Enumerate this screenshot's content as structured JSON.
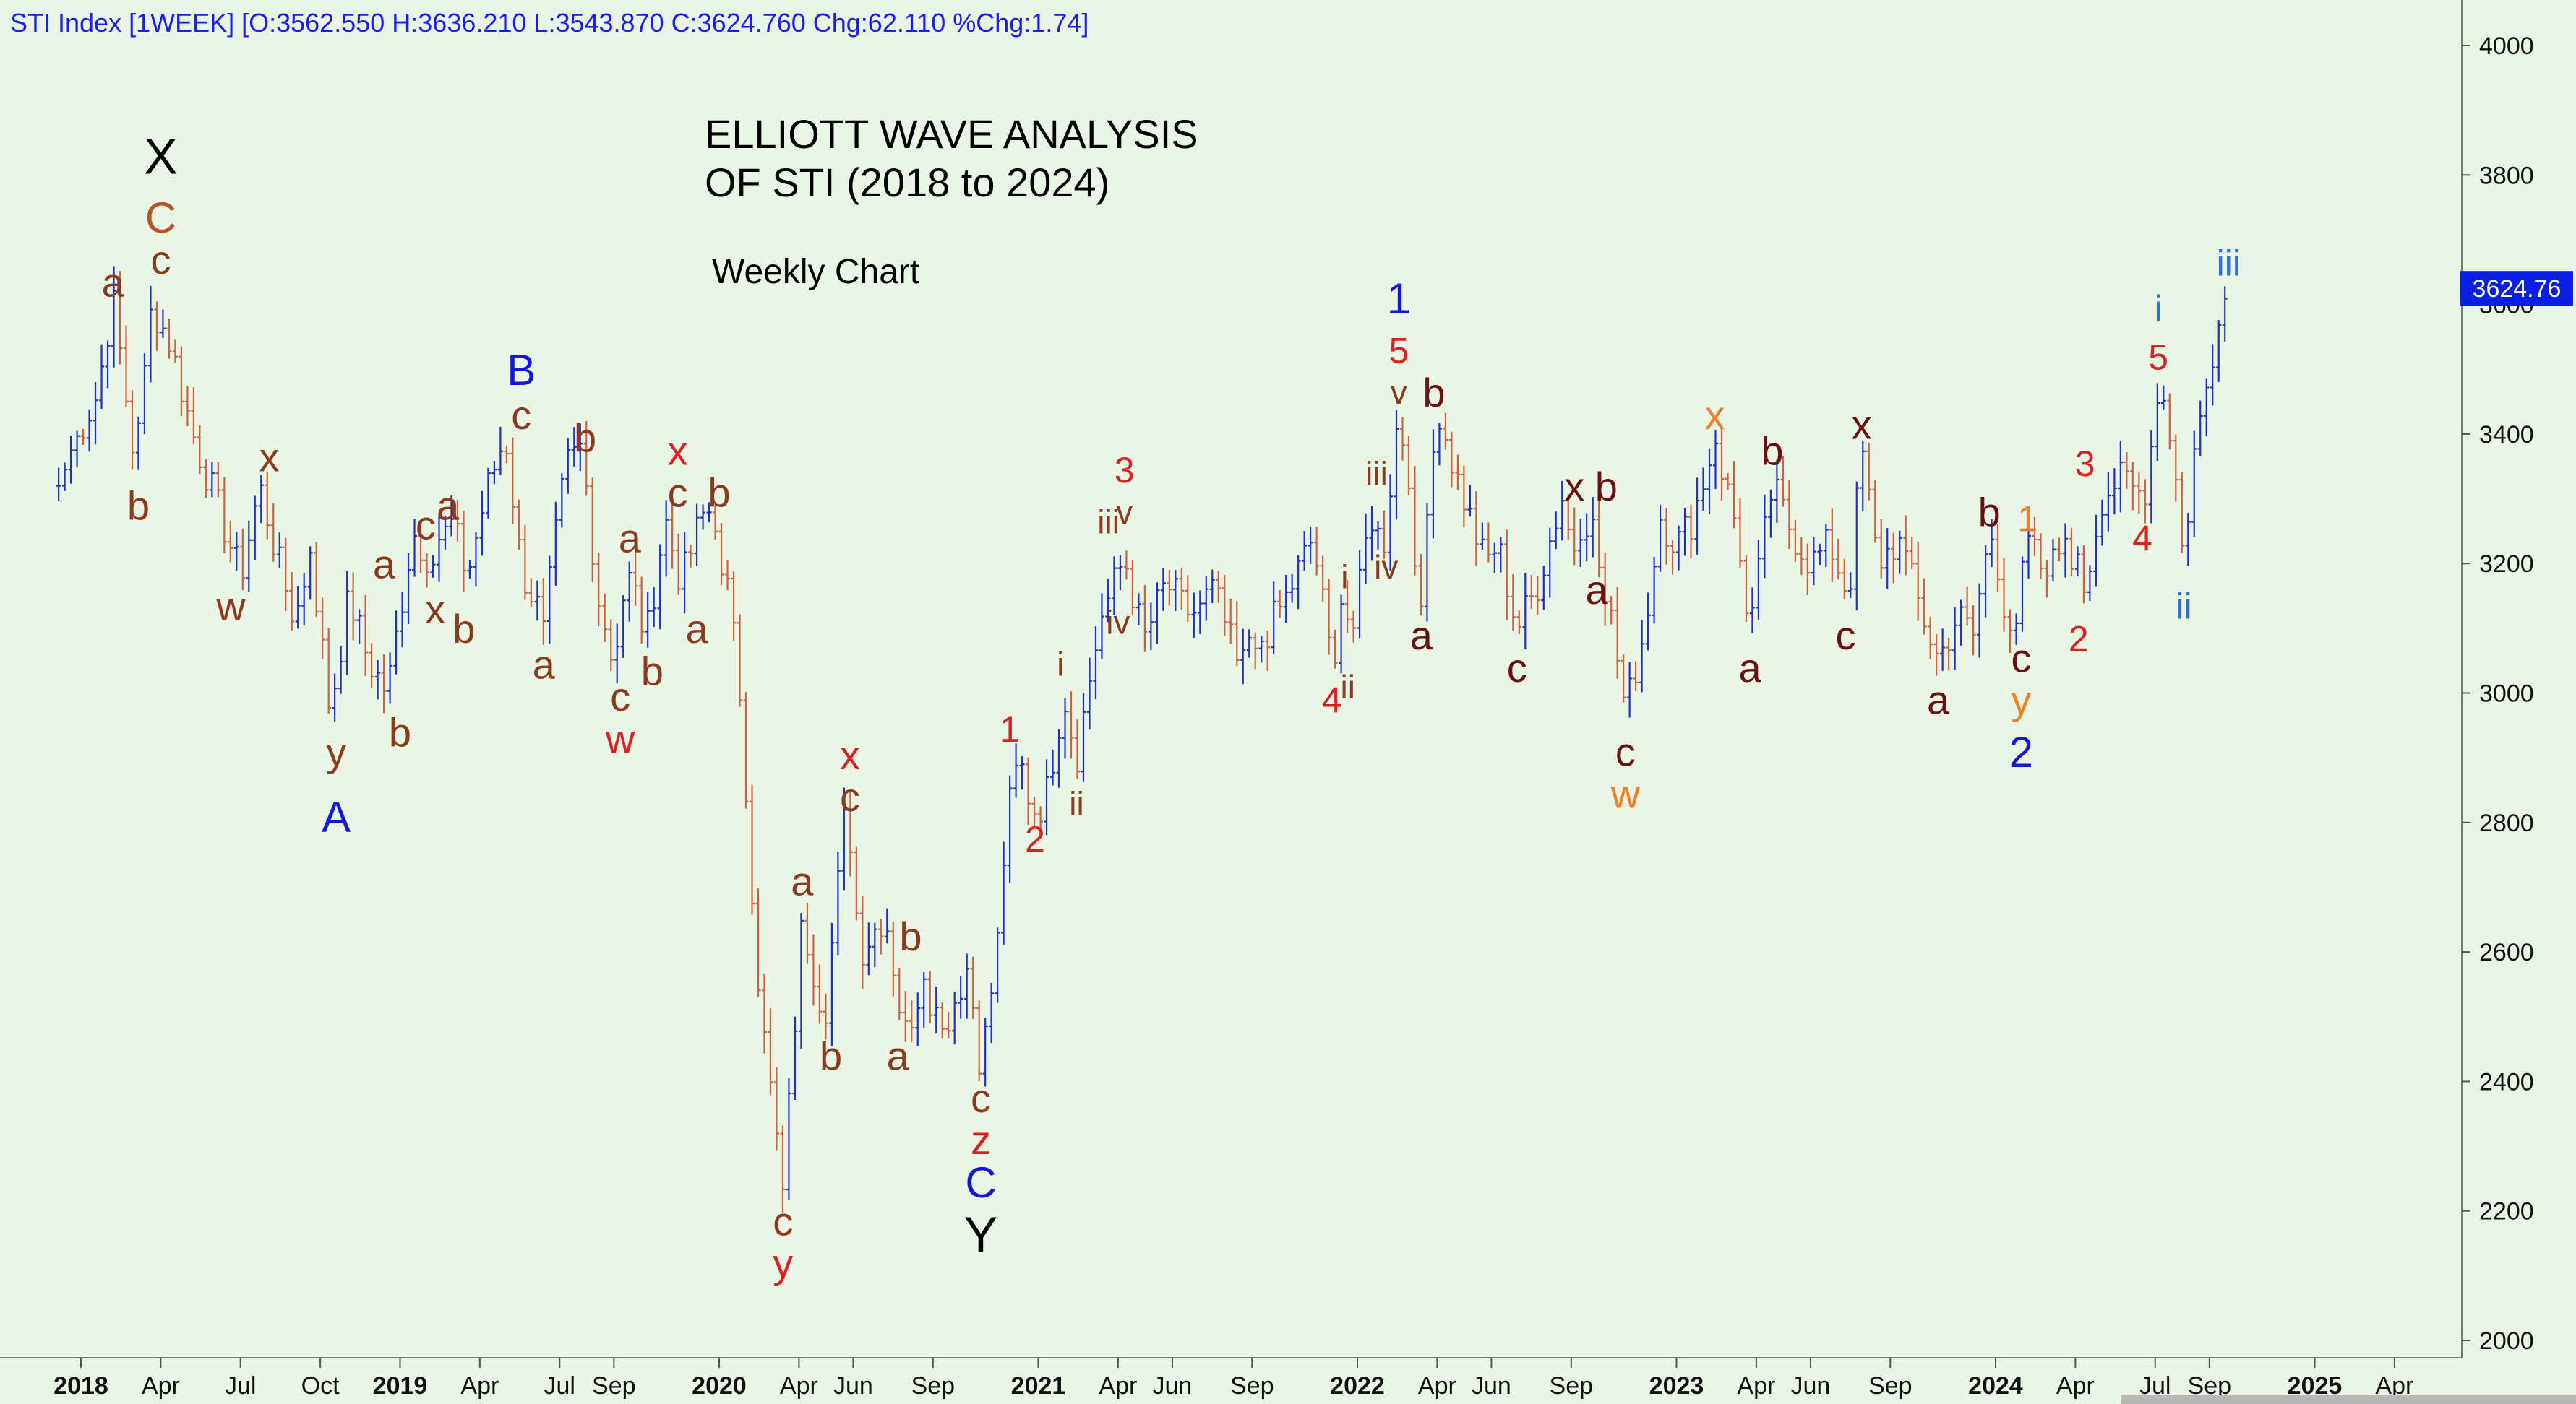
{
  "header": {
    "text": "STI Index [1WEEK] [O:3562.550 H:3636.210 L:3543.870 C:3624.760 Chg:62.110 %Chg:1.74]"
  },
  "title": {
    "line1": "ELLIOTT WAVE ANALYSIS",
    "line2": "OF STI (2018 to 2024)",
    "subtitle": "Weekly Chart"
  },
  "last_price_label": "3624.76",
  "colors": {
    "background": "#e9f5e5",
    "up_bar": "#1f2fd0",
    "down_bar": "#d2603e",
    "price_tag": "#0a1ee6",
    "header_text": "#1a1aff"
  },
  "chart_data": {
    "type": "ohlc-weekly",
    "ylim": [
      2000,
      4050
    ],
    "yticks": [
      2000,
      2200,
      2400,
      2600,
      2800,
      3000,
      3200,
      3400,
      3600,
      3800,
      4000
    ],
    "x_range": [
      2017.9,
      2025.6
    ],
    "xticks": [
      {
        "t": 2018.0,
        "label": "2018",
        "bold": true
      },
      {
        "t": 2018.25,
        "label": "Apr",
        "bold": false
      },
      {
        "t": 2018.5,
        "label": "Jul",
        "bold": false
      },
      {
        "t": 2018.75,
        "label": "Oct",
        "bold": false
      },
      {
        "t": 2019.0,
        "label": "2019",
        "bold": true
      },
      {
        "t": 2019.25,
        "label": "Apr",
        "bold": false
      },
      {
        "t": 2019.5,
        "label": "Jul",
        "bold": false
      },
      {
        "t": 2019.67,
        "label": "Sep",
        "bold": false
      },
      {
        "t": 2020.0,
        "label": "2020",
        "bold": true
      },
      {
        "t": 2020.25,
        "label": "Apr",
        "bold": false
      },
      {
        "t": 2020.42,
        "label": "Jun",
        "bold": false
      },
      {
        "t": 2020.67,
        "label": "Sep",
        "bold": false
      },
      {
        "t": 2021.0,
        "label": "2021",
        "bold": true
      },
      {
        "t": 2021.25,
        "label": "Apr",
        "bold": false
      },
      {
        "t": 2021.42,
        "label": "Jun",
        "bold": false
      },
      {
        "t": 2021.67,
        "label": "Sep",
        "bold": false
      },
      {
        "t": 2022.0,
        "label": "2022",
        "bold": true
      },
      {
        "t": 2022.25,
        "label": "Apr",
        "bold": false
      },
      {
        "t": 2022.42,
        "label": "Jun",
        "bold": false
      },
      {
        "t": 2022.67,
        "label": "Sep",
        "bold": false
      },
      {
        "t": 2023.0,
        "label": "2023",
        "bold": true
      },
      {
        "t": 2023.25,
        "label": "Apr",
        "bold": false
      },
      {
        "t": 2023.42,
        "label": "Jun",
        "bold": false
      },
      {
        "t": 2023.67,
        "label": "Sep",
        "bold": false
      },
      {
        "t": 2024.0,
        "label": "2024",
        "bold": true
      },
      {
        "t": 2024.25,
        "label": "Apr",
        "bold": false
      },
      {
        "t": 2024.5,
        "label": "Jul",
        "bold": false
      },
      {
        "t": 2024.67,
        "label": "Sep",
        "bold": false
      },
      {
        "t": 2025.0,
        "label": "2025",
        "bold": true
      },
      {
        "t": 2025.25,
        "label": "Apr",
        "bold": false
      }
    ],
    "path": [
      [
        2017.93,
        3320
      ],
      [
        2017.99,
        3400
      ],
      [
        2018.05,
        3460
      ],
      [
        2018.1,
        3610
      ],
      [
        2018.17,
        3350
      ],
      [
        2018.22,
        3600
      ],
      [
        2018.28,
        3540
      ],
      [
        2018.35,
        3400
      ],
      [
        2018.42,
        3300
      ],
      [
        2018.5,
        3180
      ],
      [
        2018.56,
        3320
      ],
      [
        2018.62,
        3200
      ],
      [
        2018.67,
        3110
      ],
      [
        2018.72,
        3220
      ],
      [
        2018.78,
        2970
      ],
      [
        2018.84,
        3150
      ],
      [
        2018.9,
        3050
      ],
      [
        2018.96,
        3000
      ],
      [
        2019.04,
        3250
      ],
      [
        2019.1,
        3200
      ],
      [
        2019.16,
        3270
      ],
      [
        2019.21,
        3180
      ],
      [
        2019.27,
        3310
      ],
      [
        2019.33,
        3400
      ],
      [
        2019.38,
        3190
      ],
      [
        2019.45,
        3110
      ],
      [
        2019.52,
        3350
      ],
      [
        2019.57,
        3380
      ],
      [
        2019.62,
        3150
      ],
      [
        2019.67,
        3050
      ],
      [
        2019.72,
        3190
      ],
      [
        2019.77,
        3080
      ],
      [
        2019.83,
        3270
      ],
      [
        2019.88,
        3170
      ],
      [
        2019.95,
        3280
      ],
      [
        2019.98,
        3270
      ],
      [
        2020.03,
        3150
      ],
      [
        2020.07,
        2980
      ],
      [
        2020.12,
        2550
      ],
      [
        2020.2,
        2230
      ],
      [
        2020.26,
        2650
      ],
      [
        2020.33,
        2500
      ],
      [
        2020.4,
        2840
      ],
      [
        2020.44,
        2600
      ],
      [
        2020.52,
        2660
      ],
      [
        2020.58,
        2470
      ],
      [
        2020.64,
        2560
      ],
      [
        2020.7,
        2480
      ],
      [
        2020.78,
        2580
      ],
      [
        2020.82,
        2420
      ],
      [
        2020.87,
        2600
      ],
      [
        2020.9,
        2800
      ],
      [
        2020.94,
        2900
      ],
      [
        2020.98,
        2820
      ],
      [
        2021.02,
        2830
      ],
      [
        2021.08,
        3000
      ],
      [
        2021.12,
        2900
      ],
      [
        2021.17,
        3050
      ],
      [
        2021.2,
        3120
      ],
      [
        2021.27,
        3210
      ],
      [
        2021.33,
        3080
      ],
      [
        2021.4,
        3170
      ],
      [
        2021.47,
        3120
      ],
      [
        2021.55,
        3160
      ],
      [
        2021.62,
        3050
      ],
      [
        2021.7,
        3080
      ],
      [
        2021.78,
        3150
      ],
      [
        2021.86,
        3240
      ],
      [
        2021.9,
        3110
      ],
      [
        2021.92,
        3040
      ],
      [
        2021.95,
        3140
      ],
      [
        2021.99,
        3100
      ],
      [
        2022.04,
        3280
      ],
      [
        2022.08,
        3220
      ],
      [
        2022.13,
        3440
      ],
      [
        2022.16,
        3320
      ],
      [
        2022.2,
        3130
      ],
      [
        2022.25,
        3450
      ],
      [
        2022.3,
        3350
      ],
      [
        2022.36,
        3260
      ],
      [
        2022.4,
        3200
      ],
      [
        2022.44,
        3230
      ],
      [
        2022.5,
        3100
      ],
      [
        2022.56,
        3160
      ],
      [
        2022.64,
        3300
      ],
      [
        2022.68,
        3220
      ],
      [
        2022.74,
        3270
      ],
      [
        2022.8,
        3100
      ],
      [
        2022.84,
        2970
      ],
      [
        2022.9,
        3100
      ],
      [
        2022.95,
        3270
      ],
      [
        2023.0,
        3230
      ],
      [
        2023.05,
        3270
      ],
      [
        2023.12,
        3390
      ],
      [
        2023.18,
        3270
      ],
      [
        2023.23,
        3100
      ],
      [
        2023.3,
        3320
      ],
      [
        2023.36,
        3250
      ],
      [
        2023.42,
        3200
      ],
      [
        2023.48,
        3230
      ],
      [
        2023.54,
        3150
      ],
      [
        2023.58,
        3380
      ],
      [
        2023.63,
        3200
      ],
      [
        2023.7,
        3240
      ],
      [
        2023.75,
        3150
      ],
      [
        2023.82,
        3050
      ],
      [
        2023.88,
        3120
      ],
      [
        2023.93,
        3090
      ],
      [
        2023.98,
        3250
      ],
      [
        2024.02,
        3150
      ],
      [
        2024.06,
        3100
      ],
      [
        2024.1,
        3230
      ],
      [
        2024.16,
        3180
      ],
      [
        2024.22,
        3240
      ],
      [
        2024.28,
        3160
      ],
      [
        2024.33,
        3300
      ],
      [
        2024.38,
        3330
      ],
      [
        2024.43,
        3320
      ],
      [
        2024.47,
        3290
      ],
      [
        2024.51,
        3490
      ],
      [
        2024.55,
        3400
      ],
      [
        2024.59,
        3210
      ],
      [
        2024.62,
        3370
      ],
      [
        2024.66,
        3470
      ],
      [
        2024.7,
        3570
      ],
      [
        2024.73,
        3625
      ]
    ],
    "annotations": [
      {
        "text": "X",
        "x": 2018.25,
        "y": 3830,
        "color": "#000000",
        "size": 70
      },
      {
        "text": "C",
        "x": 2018.25,
        "y": 3735,
        "color": "#b5532e",
        "size": 60
      },
      {
        "text": "c",
        "x": 2018.25,
        "y": 3670,
        "color": "#8b3a1e",
        "size": 56
      },
      {
        "text": "a",
        "x": 2018.1,
        "y": 3635,
        "color": "#8b3a1e",
        "size": 56
      },
      {
        "text": "b",
        "x": 2018.18,
        "y": 3290,
        "color": "#8b3a1e",
        "size": 56
      },
      {
        "text": "x",
        "x": 2018.59,
        "y": 3365,
        "color": "#8b3a1e",
        "size": 56
      },
      {
        "text": "w",
        "x": 2018.47,
        "y": 3135,
        "color": "#8b3a1e",
        "size": 56
      },
      {
        "text": "a",
        "x": 2018.95,
        "y": 3200,
        "color": "#8b3a1e",
        "size": 56
      },
      {
        "text": "y",
        "x": 2018.8,
        "y": 2910,
        "color": "#8b3a1e",
        "size": 56
      },
      {
        "text": "b",
        "x": 2019.0,
        "y": 2940,
        "color": "#8b3a1e",
        "size": 56
      },
      {
        "text": "A",
        "x": 2018.8,
        "y": 2810,
        "color": "#1515e0",
        "size": 60
      },
      {
        "text": "c",
        "x": 2019.08,
        "y": 3260,
        "color": "#8b3a1e",
        "size": 56
      },
      {
        "text": "a",
        "x": 2019.15,
        "y": 3290,
        "color": "#8b3a1e",
        "size": 56
      },
      {
        "text": "x",
        "x": 2019.11,
        "y": 3130,
        "color": "#8b3a1e",
        "size": 56
      },
      {
        "text": "b",
        "x": 2019.2,
        "y": 3100,
        "color": "#8b3a1e",
        "size": 56
      },
      {
        "text": "B",
        "x": 2019.38,
        "y": 3500,
        "color": "#1515e0",
        "size": 60
      },
      {
        "text": "c",
        "x": 2019.38,
        "y": 3430,
        "color": "#8b3a1e",
        "size": 56
      },
      {
        "text": "a",
        "x": 2019.45,
        "y": 3045,
        "color": "#8b3a1e",
        "size": 56
      },
      {
        "text": "b",
        "x": 2019.58,
        "y": 3395,
        "color": "#8b3a1e",
        "size": 56
      },
      {
        "text": "a",
        "x": 2019.72,
        "y": 3240,
        "color": "#8b3a1e",
        "size": 56
      },
      {
        "text": "c",
        "x": 2019.69,
        "y": 2995,
        "color": "#8b3a1e",
        "size": 56
      },
      {
        "text": "w",
        "x": 2019.69,
        "y": 2930,
        "color": "#e02020",
        "size": 56
      },
      {
        "text": "b",
        "x": 2019.79,
        "y": 3035,
        "color": "#8b3a1e",
        "size": 56
      },
      {
        "text": "x",
        "x": 2019.87,
        "y": 3375,
        "color": "#e02020",
        "size": 56
      },
      {
        "text": "c",
        "x": 2019.87,
        "y": 3310,
        "color": "#8b3a1e",
        "size": 56
      },
      {
        "text": "a",
        "x": 2019.93,
        "y": 3100,
        "color": "#8b3a1e",
        "size": 56
      },
      {
        "text": "b",
        "x": 2020.0,
        "y": 3310,
        "color": "#8b3a1e",
        "size": 56
      },
      {
        "text": "c",
        "x": 2020.2,
        "y": 2185,
        "color": "#8b3a1e",
        "size": 56
      },
      {
        "text": "y",
        "x": 2020.2,
        "y": 2120,
        "color": "#e02020",
        "size": 56
      },
      {
        "text": "a",
        "x": 2020.26,
        "y": 2710,
        "color": "#8b3a1e",
        "size": 56
      },
      {
        "text": "b",
        "x": 2020.35,
        "y": 2440,
        "color": "#8b3a1e",
        "size": 56
      },
      {
        "text": "x",
        "x": 2020.41,
        "y": 2905,
        "color": "#e02020",
        "size": 56
      },
      {
        "text": "c",
        "x": 2020.41,
        "y": 2840,
        "color": "#8b3a1e",
        "size": 56
      },
      {
        "text": "b",
        "x": 2020.6,
        "y": 2625,
        "color": "#8b3a1e",
        "size": 56
      },
      {
        "text": "a",
        "x": 2020.56,
        "y": 2440,
        "color": "#8b3a1e",
        "size": 56
      },
      {
        "text": "c",
        "x": 2020.82,
        "y": 2375,
        "color": "#8b3a1e",
        "size": 56
      },
      {
        "text": "z",
        "x": 2020.82,
        "y": 2310,
        "color": "#e02020",
        "size": 56
      },
      {
        "text": "C",
        "x": 2020.82,
        "y": 2245,
        "color": "#1515e0",
        "size": 60
      },
      {
        "text": "Y",
        "x": 2020.82,
        "y": 2165,
        "color": "#000000",
        "size": 70
      },
      {
        "text": "1",
        "x": 2020.91,
        "y": 2945,
        "color": "#e02020",
        "size": 50
      },
      {
        "text": "2",
        "x": 2020.99,
        "y": 2775,
        "color": "#e02020",
        "size": 50
      },
      {
        "text": "i",
        "x": 2021.07,
        "y": 3045,
        "color": "#8b3a1e",
        "size": 46
      },
      {
        "text": "ii",
        "x": 2021.12,
        "y": 2830,
        "color": "#8b3a1e",
        "size": 46
      },
      {
        "text": "3",
        "x": 2021.27,
        "y": 3345,
        "color": "#e02020",
        "size": 50
      },
      {
        "text": "iii",
        "x": 2021.22,
        "y": 3265,
        "color": "#8b3a1e",
        "size": 46
      },
      {
        "text": "v",
        "x": 2021.27,
        "y": 3280,
        "color": "#8b3a1e",
        "size": 46
      },
      {
        "text": "iv",
        "x": 2021.25,
        "y": 3110,
        "color": "#8b3a1e",
        "size": 46
      },
      {
        "text": "4",
        "x": 2021.92,
        "y": 2990,
        "color": "#e02020",
        "size": 50
      },
      {
        "text": "ii",
        "x": 2021.97,
        "y": 3010,
        "color": "#8b3a1e",
        "size": 46
      },
      {
        "text": "i",
        "x": 2021.96,
        "y": 3180,
        "color": "#8b3a1e",
        "size": 46
      },
      {
        "text": "iii",
        "x": 2022.06,
        "y": 3340,
        "color": "#8b3a1e",
        "size": 46
      },
      {
        "text": "iv",
        "x": 2022.09,
        "y": 3195,
        "color": "#8b3a1e",
        "size": 46
      },
      {
        "text": "1",
        "x": 2022.13,
        "y": 3610,
        "color": "#1515e0",
        "size": 60
      },
      {
        "text": "5",
        "x": 2022.13,
        "y": 3530,
        "color": "#e02020",
        "size": 50
      },
      {
        "text": "v",
        "x": 2022.13,
        "y": 3465,
        "color": "#8b3a1e",
        "size": 46
      },
      {
        "text": "b",
        "x": 2022.24,
        "y": 3465,
        "color": "#6b0f0f",
        "size": 56
      },
      {
        "text": "a",
        "x": 2022.2,
        "y": 3090,
        "color": "#6b0f0f",
        "size": 56
      },
      {
        "text": "c",
        "x": 2022.5,
        "y": 3040,
        "color": "#6b0f0f",
        "size": 56
      },
      {
        "text": "x",
        "x": 2022.68,
        "y": 3320,
        "color": "#6b0f0f",
        "size": 56
      },
      {
        "text": "b",
        "x": 2022.78,
        "y": 3320,
        "color": "#6b0f0f",
        "size": 56
      },
      {
        "text": "a",
        "x": 2022.75,
        "y": 3160,
        "color": "#6b0f0f",
        "size": 56
      },
      {
        "text": "c",
        "x": 2022.84,
        "y": 2910,
        "color": "#6b0f0f",
        "size": 56
      },
      {
        "text": "w",
        "x": 2022.84,
        "y": 2845,
        "color": "#f07f2a",
        "size": 56
      },
      {
        "text": "x",
        "x": 2023.12,
        "y": 3430,
        "color": "#f07f2a",
        "size": 56
      },
      {
        "text": "b",
        "x": 2023.3,
        "y": 3375,
        "color": "#6b0f0f",
        "size": 56
      },
      {
        "text": "a",
        "x": 2023.23,
        "y": 3040,
        "color": "#6b0f0f",
        "size": 56
      },
      {
        "text": "x",
        "x": 2023.58,
        "y": 3415,
        "color": "#6b0f0f",
        "size": 56
      },
      {
        "text": "c",
        "x": 2023.53,
        "y": 3090,
        "color": "#6b0f0f",
        "size": 56
      },
      {
        "text": "a",
        "x": 2023.82,
        "y": 2990,
        "color": "#6b0f0f",
        "size": 56
      },
      {
        "text": "b",
        "x": 2023.98,
        "y": 3280,
        "color": "#6b0f0f",
        "size": 56
      },
      {
        "text": "1",
        "x": 2024.1,
        "y": 3270,
        "color": "#f07f2a",
        "size": 50
      },
      {
        "text": "c",
        "x": 2024.08,
        "y": 3055,
        "color": "#6b0f0f",
        "size": 56
      },
      {
        "text": "y",
        "x": 2024.08,
        "y": 2990,
        "color": "#f07f2a",
        "size": 56
      },
      {
        "text": "2",
        "x": 2024.08,
        "y": 2910,
        "color": "#1515e0",
        "size": 60
      },
      {
        "text": "3",
        "x": 2024.28,
        "y": 3355,
        "color": "#e02020",
        "size": 50
      },
      {
        "text": "2",
        "x": 2024.26,
        "y": 3085,
        "color": "#e02020",
        "size": 50
      },
      {
        "text": "4",
        "x": 2024.46,
        "y": 3240,
        "color": "#e02020",
        "size": 50
      },
      {
        "text": "i",
        "x": 2024.51,
        "y": 3595,
        "color": "#2f6fd6",
        "size": 50
      },
      {
        "text": "5",
        "x": 2024.51,
        "y": 3520,
        "color": "#e02020",
        "size": 50
      },
      {
        "text": "ii",
        "x": 2024.59,
        "y": 3135,
        "color": "#2f6fd6",
        "size": 50
      },
      {
        "text": "iii",
        "x": 2024.73,
        "y": 3665,
        "color": "#2f6fd6",
        "size": 50
      }
    ]
  }
}
